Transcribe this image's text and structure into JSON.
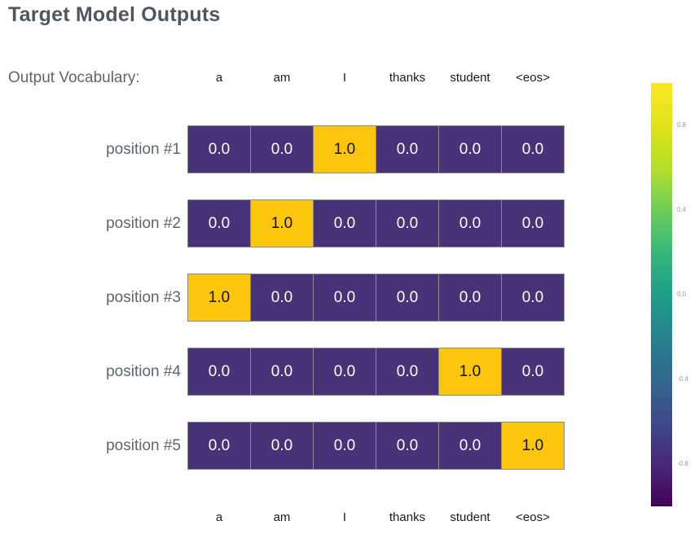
{
  "title": "Target Model Outputs",
  "vocab_header": {
    "label": "Output Vocabulary:"
  },
  "grid": {
    "columns": [
      "a",
      "am",
      "I",
      "thanks",
      "student",
      "<eos>"
    ],
    "rows": [
      {
        "label": "position #1",
        "values": [
          "0.0",
          "0.0",
          "1.0",
          "0.0",
          "0.0",
          "0.0"
        ]
      },
      {
        "label": "position #2",
        "values": [
          "0.0",
          "1.0",
          "0.0",
          "0.0",
          "0.0",
          "0.0"
        ]
      },
      {
        "label": "position #3",
        "values": [
          "1.0",
          "0.0",
          "0.0",
          "0.0",
          "0.0",
          "0.0"
        ]
      },
      {
        "label": "position #4",
        "values": [
          "0.0",
          "0.0",
          "0.0",
          "0.0",
          "1.0",
          "0.0"
        ]
      },
      {
        "label": "position #5",
        "values": [
          "0.0",
          "0.0",
          "0.0",
          "0.0",
          "0.0",
          "1.0"
        ]
      }
    ]
  },
  "colors": {
    "cell_high": "#fcc60d",
    "cell_low": "#483378",
    "cell_text_high": "#111111",
    "cell_text_low": "#ffffff",
    "grid_line": "#8a8a8a",
    "title_text": "#4f565e",
    "label_text": "#5c666e",
    "tick_text": "#999999"
  },
  "colorbar": {
    "range": [
      -1,
      1
    ],
    "ticks": [
      {
        "label": "0.8",
        "value": 0.8
      },
      {
        "label": "0.4",
        "value": 0.4
      },
      {
        "label": "0.0",
        "value": 0.0
      },
      {
        "label": "-0.4",
        "value": -0.4
      },
      {
        "label": "-0.8",
        "value": -0.8
      }
    ],
    "gradient": [
      "#fde725",
      "#dfe318",
      "#b5de2b",
      "#6ece58",
      "#35b779",
      "#1f9e89",
      "#26828e",
      "#31688e",
      "#3e4a89",
      "#482878",
      "#440154"
    ]
  },
  "chart_data": {
    "type": "heatmap",
    "title": "Target Model Outputs",
    "columns": [
      "a",
      "am",
      "I",
      "thanks",
      "student",
      "<eos>"
    ],
    "rows": [
      "position #1",
      "position #2",
      "position #3",
      "position #4",
      "position #5"
    ],
    "values": [
      [
        0.0,
        0.0,
        1.0,
        0.0,
        0.0,
        0.0
      ],
      [
        0.0,
        1.0,
        0.0,
        0.0,
        0.0,
        0.0
      ],
      [
        1.0,
        0.0,
        0.0,
        0.0,
        0.0,
        0.0
      ],
      [
        0.0,
        0.0,
        0.0,
        0.0,
        1.0,
        0.0
      ],
      [
        0.0,
        0.0,
        0.0,
        0.0,
        0.0,
        1.0
      ]
    ],
    "colormap": "viridis",
    "colorbar_range": [
      -1,
      1
    ],
    "colorbar_ticks": [
      0.8,
      0.4,
      0.0,
      -0.4,
      -0.8
    ],
    "legend_position": "right",
    "grid": false,
    "cell_value_high_color": "#fcc60d",
    "cell_value_low_color": "#483378"
  }
}
